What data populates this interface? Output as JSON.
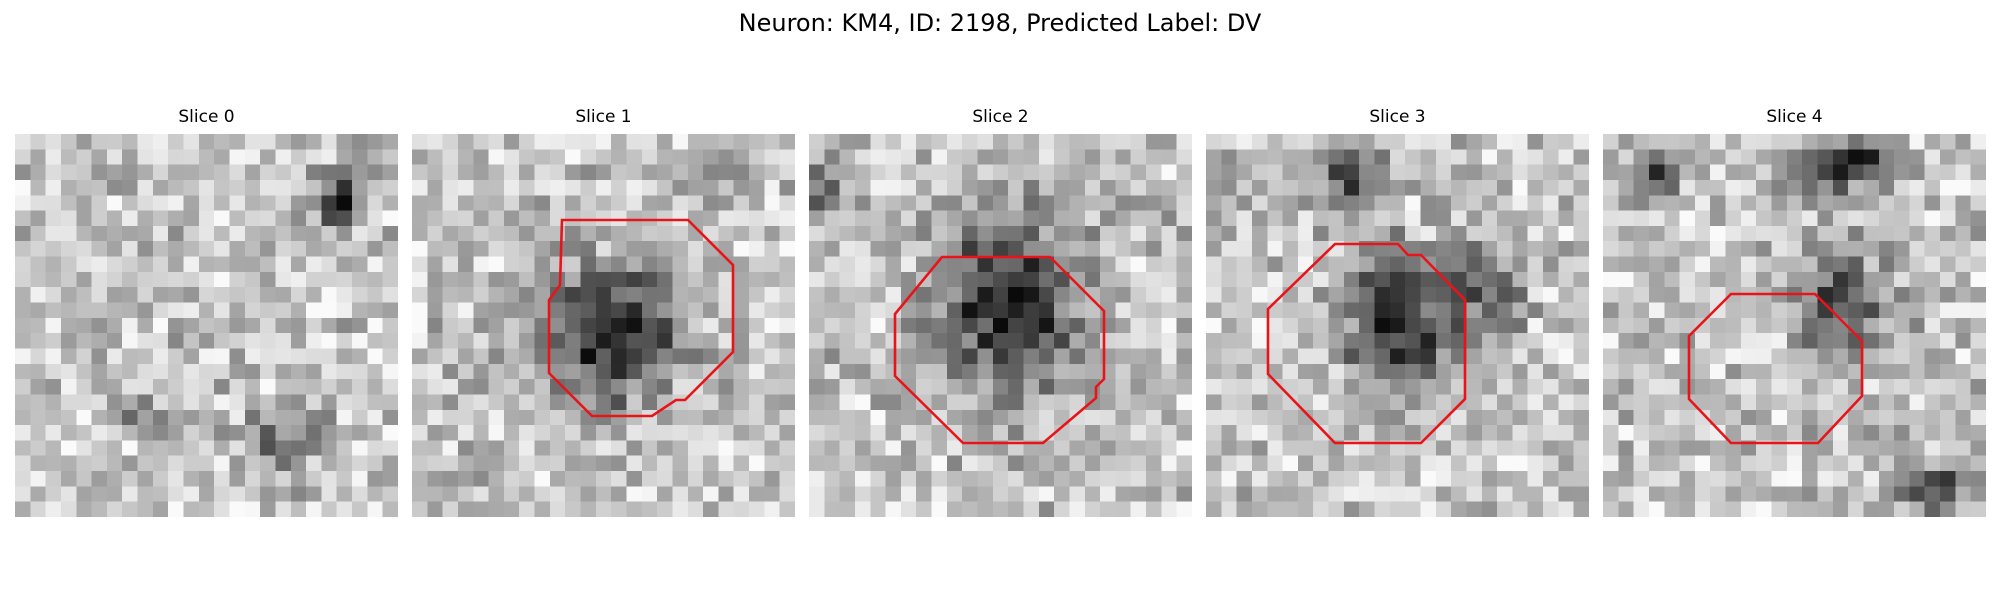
{
  "figure": {
    "title": "Neuron: KM4, ID: 2198, Predicted Label: DV",
    "outline_color": "#e8141a"
  },
  "panels": [
    {
      "title": "Slice 0",
      "has_outline": false,
      "dark_blobs": [
        [
          0.84,
          0.17,
          0.09,
          0.09,
          0.75
        ],
        [
          0.7,
          0.8,
          0.15,
          0.1,
          0.45
        ],
        [
          0.35,
          0.75,
          0.1,
          0.07,
          0.35
        ]
      ]
    },
    {
      "title": "Slice 1",
      "has_outline": true,
      "dark_blobs": [
        [
          0.52,
          0.52,
          0.22,
          0.22,
          0.85
        ],
        [
          0.8,
          0.1,
          0.12,
          0.08,
          0.35
        ]
      ]
    },
    {
      "title": "Slice 2",
      "has_outline": true,
      "dark_blobs": [
        [
          0.52,
          0.45,
          0.22,
          0.28,
          0.9
        ],
        [
          0.05,
          0.15,
          0.08,
          0.12,
          0.55
        ],
        [
          0.8,
          0.15,
          0.1,
          0.08,
          0.25
        ]
      ]
    },
    {
      "title": "Slice 3",
      "has_outline": true,
      "dark_blobs": [
        [
          0.5,
          0.5,
          0.16,
          0.22,
          0.9
        ],
        [
          0.38,
          0.1,
          0.1,
          0.1,
          0.8
        ],
        [
          0.72,
          0.4,
          0.12,
          0.15,
          0.6
        ],
        [
          0.05,
          0.12,
          0.08,
          0.06,
          0.45
        ]
      ]
    },
    {
      "title": "Slice 4",
      "has_outline": true,
      "dark_blobs": [
        [
          0.62,
          0.08,
          0.18,
          0.08,
          0.85
        ],
        [
          0.12,
          0.12,
          0.1,
          0.06,
          0.7
        ],
        [
          0.62,
          0.45,
          0.14,
          0.18,
          0.65
        ],
        [
          0.85,
          0.92,
          0.12,
          0.08,
          0.8
        ]
      ]
    }
  ]
}
